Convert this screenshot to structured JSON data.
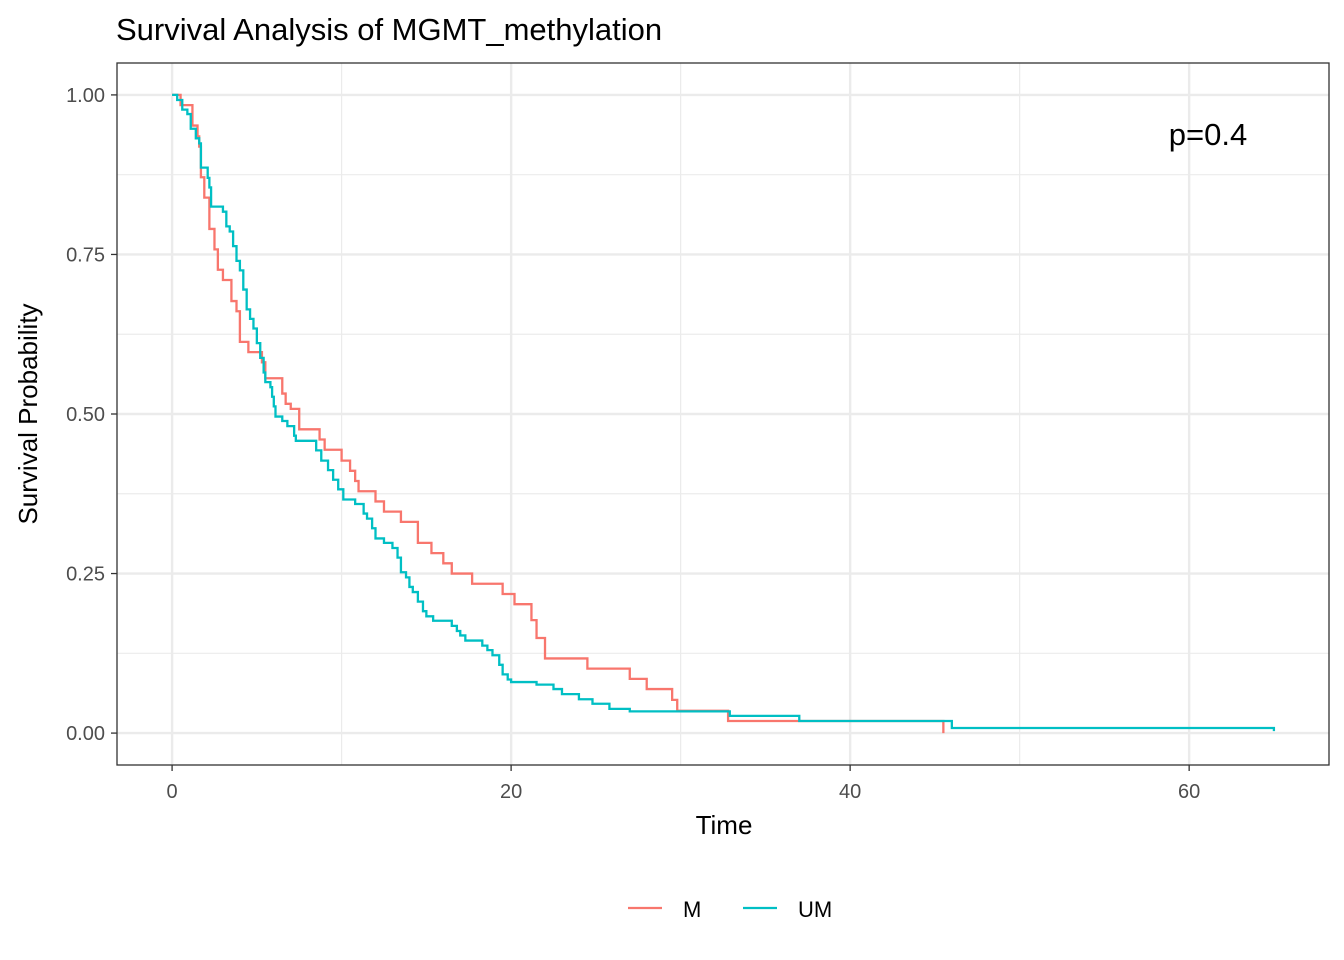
{
  "chart_data": {
    "type": "line",
    "step": true,
    "title": "Survival Analysis of MGMT_methylation",
    "xlabel": "Time",
    "ylabel": "Survival Probability",
    "xlim": [
      -3.25,
      68.25
    ],
    "ylim": [
      -0.05,
      1.05
    ],
    "x_ticks": [
      0,
      20,
      40,
      60
    ],
    "x_tick_labels": [
      "0",
      "20",
      "40",
      "60"
    ],
    "y_ticks": [
      0,
      0.25,
      0.5,
      0.75,
      1
    ],
    "y_tick_labels": [
      "0.00",
      "0.25",
      "0.50",
      "0.75",
      "1.00"
    ],
    "x_minor_ticks": [
      10,
      30,
      50
    ],
    "y_minor_ticks": [
      0.125,
      0.375,
      0.625,
      0.875
    ],
    "grid": true,
    "legend_position": "bottom",
    "annotation": "p=0.4",
    "series": [
      {
        "name": "M",
        "color": "#F8766D",
        "points": [
          [
            0,
            1.0
          ],
          [
            0.5,
            0.984
          ],
          [
            1.2,
            0.952
          ],
          [
            1.5,
            0.935
          ],
          [
            1.6,
            0.919
          ],
          [
            1.7,
            0.871
          ],
          [
            1.9,
            0.839
          ],
          [
            2.2,
            0.79
          ],
          [
            2.5,
            0.758
          ],
          [
            2.7,
            0.726
          ],
          [
            3.0,
            0.71
          ],
          [
            3.5,
            0.677
          ],
          [
            3.8,
            0.661
          ],
          [
            4.0,
            0.645
          ],
          [
            4.0,
            0.613
          ],
          [
            4.5,
            0.597
          ],
          [
            5.0,
            0.597
          ],
          [
            5.3,
            0.581
          ],
          [
            5.5,
            0.556
          ],
          [
            6.5,
            0.532
          ],
          [
            6.7,
            0.516
          ],
          [
            7.0,
            0.508
          ],
          [
            7.5,
            0.476
          ],
          [
            8.7,
            0.46
          ],
          [
            9.0,
            0.444
          ],
          [
            9.8,
            0.444
          ],
          [
            10.0,
            0.427
          ],
          [
            10.5,
            0.411
          ],
          [
            10.8,
            0.395
          ],
          [
            11.0,
            0.379
          ],
          [
            12.0,
            0.363
          ],
          [
            12.5,
            0.347
          ],
          [
            13.5,
            0.331
          ],
          [
            14.5,
            0.298
          ],
          [
            15.3,
            0.282
          ],
          [
            16.0,
            0.266
          ],
          [
            16.5,
            0.25
          ],
          [
            16.9,
            0.25
          ],
          [
            17.7,
            0.234
          ],
          [
            19.5,
            0.218
          ],
          [
            20.2,
            0.202
          ],
          [
            21.2,
            0.177
          ],
          [
            21.5,
            0.149
          ],
          [
            22.0,
            0.117
          ],
          [
            24.5,
            0.101
          ],
          [
            27.0,
            0.085
          ],
          [
            28.0,
            0.069
          ],
          [
            29.5,
            0.052
          ],
          [
            29.8,
            0.035
          ],
          [
            32.8,
            0.019
          ],
          [
            37.0,
            0.019
          ],
          [
            45.5,
            0.019
          ],
          [
            45.5,
            0.0
          ]
        ]
      },
      {
        "name": "UM",
        "color": "#00BFC4",
        "points": [
          [
            0,
            1.0
          ],
          [
            0.3,
            0.992
          ],
          [
            0.6,
            0.977
          ],
          [
            0.9,
            0.97
          ],
          [
            1.1,
            0.947
          ],
          [
            1.4,
            0.932
          ],
          [
            1.6,
            0.924
          ],
          [
            1.7,
            0.886
          ],
          [
            2.0,
            0.886
          ],
          [
            2.1,
            0.87
          ],
          [
            2.2,
            0.855
          ],
          [
            2.3,
            0.825
          ],
          [
            2.8,
            0.825
          ],
          [
            3.0,
            0.817
          ],
          [
            3.2,
            0.794
          ],
          [
            3.4,
            0.786
          ],
          [
            3.6,
            0.763
          ],
          [
            3.8,
            0.74
          ],
          [
            4.0,
            0.725
          ],
          [
            4.2,
            0.695
          ],
          [
            4.4,
            0.664
          ],
          [
            4.6,
            0.649
          ],
          [
            4.8,
            0.634
          ],
          [
            5.0,
            0.611
          ],
          [
            5.2,
            0.588
          ],
          [
            5.4,
            0.565
          ],
          [
            5.5,
            0.55
          ],
          [
            5.8,
            0.542
          ],
          [
            5.9,
            0.527
          ],
          [
            6.0,
            0.512
          ],
          [
            6.1,
            0.496
          ],
          [
            6.5,
            0.489
          ],
          [
            6.8,
            0.481
          ],
          [
            7.2,
            0.466
          ],
          [
            7.3,
            0.458
          ],
          [
            8.5,
            0.443
          ],
          [
            8.8,
            0.427
          ],
          [
            9.2,
            0.412
          ],
          [
            9.5,
            0.397
          ],
          [
            9.8,
            0.382
          ],
          [
            10.1,
            0.366
          ],
          [
            10.8,
            0.359
          ],
          [
            11.3,
            0.344
          ],
          [
            11.5,
            0.336
          ],
          [
            11.8,
            0.321
          ],
          [
            12.0,
            0.305
          ],
          [
            12.5,
            0.298
          ],
          [
            13.0,
            0.29
          ],
          [
            13.3,
            0.275
          ],
          [
            13.5,
            0.252
          ],
          [
            13.8,
            0.244
          ],
          [
            14.0,
            0.229
          ],
          [
            14.2,
            0.221
          ],
          [
            14.5,
            0.206
          ],
          [
            14.8,
            0.191
          ],
          [
            15.0,
            0.183
          ],
          [
            15.4,
            0.176
          ],
          [
            16.5,
            0.168
          ],
          [
            16.8,
            0.16
          ],
          [
            17.0,
            0.153
          ],
          [
            17.3,
            0.145
          ],
          [
            18.3,
            0.137
          ],
          [
            18.6,
            0.13
          ],
          [
            18.9,
            0.122
          ],
          [
            19.3,
            0.107
          ],
          [
            19.5,
            0.092
          ],
          [
            19.8,
            0.084
          ],
          [
            20.0,
            0.08
          ],
          [
            21.5,
            0.076
          ],
          [
            22.5,
            0.069
          ],
          [
            23.0,
            0.061
          ],
          [
            24.0,
            0.053
          ],
          [
            24.8,
            0.046
          ],
          [
            25.0,
            0.046
          ],
          [
            25.8,
            0.038
          ],
          [
            27.0,
            0.034
          ],
          [
            32.9,
            0.027
          ],
          [
            37.0,
            0.019
          ],
          [
            46.0,
            0.008
          ],
          [
            65.0,
            0.008
          ],
          [
            65.0,
            0.003
          ]
        ]
      }
    ]
  }
}
